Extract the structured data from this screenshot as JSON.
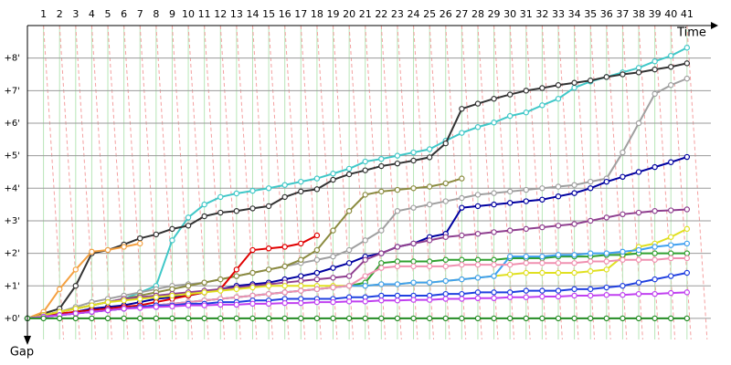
{
  "chart_data": {
    "type": "line",
    "x_label": "Time",
    "y_label": "Gap",
    "x": [
      0,
      1,
      2,
      3,
      4,
      5,
      6,
      7,
      8,
      9,
      10,
      11,
      12,
      13,
      14,
      15,
      16,
      17,
      18,
      19,
      20,
      21,
      22,
      23,
      24,
      25,
      26,
      27,
      28,
      29,
      30,
      31,
      32,
      33,
      34,
      35,
      36,
      37,
      38,
      39,
      40,
      41
    ],
    "xlim": [
      0,
      42.6
    ],
    "xticks": [
      1,
      2,
      3,
      4,
      5,
      6,
      7,
      8,
      9,
      10,
      11,
      12,
      13,
      14,
      15,
      16,
      17,
      18,
      19,
      20,
      21,
      22,
      23,
      24,
      25,
      26,
      27,
      28,
      29,
      30,
      31,
      32,
      33,
      34,
      35,
      36,
      37,
      38,
      39,
      40,
      41
    ],
    "ylim": [
      -0.9,
      9
    ],
    "yticks": [
      {
        "value": 0,
        "label": "+0'"
      },
      {
        "value": 1,
        "label": "+1'"
      },
      {
        "value": 2,
        "label": "+2'"
      },
      {
        "value": 3,
        "label": "+3'"
      },
      {
        "value": 4,
        "label": "+4'"
      },
      {
        "value": 5,
        "label": "+5'"
      },
      {
        "value": 6,
        "label": "+6'"
      },
      {
        "value": 7,
        "label": "+7'"
      },
      {
        "value": 8,
        "label": "+8'"
      }
    ],
    "grid": true,
    "series": [
      {
        "color": "#40c8c8",
        "values": [
          0,
          0.1,
          0.2,
          0.3,
          0.4,
          0.5,
          0.6,
          0.8,
          1.0,
          2.4,
          3.1,
          3.5,
          3.73,
          3.84,
          3.92,
          4.0,
          4.1,
          4.2,
          4.3,
          4.45,
          4.6,
          4.82,
          4.9,
          5.0,
          5.1,
          5.2,
          5.46,
          5.7,
          5.88,
          6.02,
          6.22,
          6.33,
          6.55,
          6.75,
          7.09,
          7.28,
          7.42,
          7.56,
          7.7,
          7.9,
          8.07,
          8.32
        ]
      },
      {
        "color": "#333333",
        "values": [
          0,
          0.15,
          0.3,
          1.0,
          2.0,
          2.1,
          2.27,
          2.46,
          2.58,
          2.75,
          2.85,
          3.14,
          3.25,
          3.3,
          3.38,
          3.45,
          3.73,
          3.9,
          3.97,
          4.26,
          4.43,
          4.55,
          4.68,
          4.76,
          4.85,
          4.95,
          5.38,
          6.44,
          6.6,
          6.75,
          6.88,
          7.0,
          7.08,
          7.17,
          7.24,
          7.31,
          7.42,
          7.5,
          7.56,
          7.65,
          7.73,
          7.84
        ]
      },
      {
        "color": "#f4a040",
        "values": [
          0,
          0.2,
          0.9,
          1.5,
          2.05,
          2.1,
          2.2,
          2.3,
          null,
          null,
          null,
          null,
          null,
          null,
          null,
          null,
          null,
          null,
          null,
          null,
          null,
          null,
          null,
          null,
          null,
          null,
          null,
          null,
          null,
          null,
          null,
          null,
          null,
          null,
          null,
          null,
          null,
          null,
          null,
          null,
          null,
          null
        ]
      },
      {
        "color": "#a0a0a0",
        "values": [
          0,
          0.1,
          0.2,
          0.35,
          0.5,
          0.6,
          0.7,
          0.8,
          0.9,
          1.0,
          1.05,
          1.1,
          1.2,
          1.3,
          1.4,
          1.5,
          1.6,
          1.7,
          1.8,
          1.9,
          2.1,
          2.4,
          2.7,
          3.3,
          3.4,
          3.5,
          3.6,
          3.7,
          3.8,
          3.85,
          3.9,
          3.95,
          4.0,
          4.05,
          4.1,
          4.2,
          4.3,
          5.1,
          6.0,
          6.9,
          7.17,
          7.37
        ]
      },
      {
        "color": "#0000a0",
        "values": [
          0,
          0.05,
          0.1,
          0.2,
          0.3,
          0.35,
          0.4,
          0.5,
          0.6,
          0.65,
          0.7,
          0.8,
          0.9,
          1.0,
          1.05,
          1.1,
          1.2,
          1.3,
          1.4,
          1.55,
          1.7,
          1.9,
          2.0,
          2.2,
          2.3,
          2.5,
          2.6,
          3.4,
          3.45,
          3.5,
          3.55,
          3.6,
          3.65,
          3.75,
          3.85,
          4.0,
          4.2,
          4.35,
          4.5,
          4.65,
          4.8,
          4.96
        ]
      },
      {
        "color": "#8b8b40",
        "values": [
          0,
          0.1,
          0.2,
          0.3,
          0.4,
          0.5,
          0.6,
          0.7,
          0.8,
          0.9,
          1.0,
          1.1,
          1.2,
          1.3,
          1.4,
          1.5,
          1.6,
          1.8,
          2.1,
          2.7,
          3.3,
          3.8,
          3.9,
          3.95,
          4.0,
          4.05,
          4.15,
          4.3,
          null,
          null,
          null,
          null,
          null,
          null,
          null,
          null,
          null,
          null,
          null,
          null,
          null,
          null
        ]
      },
      {
        "color": "#e00000",
        "values": [
          0,
          0.1,
          0.15,
          0.2,
          0.25,
          0.3,
          0.35,
          0.4,
          0.5,
          0.6,
          0.7,
          0.8,
          0.9,
          1.5,
          2.1,
          2.15,
          2.2,
          2.3,
          2.55,
          null,
          null,
          null,
          null,
          null,
          null,
          null,
          null,
          null,
          null,
          null,
          null,
          null,
          null,
          null,
          null,
          null,
          null,
          null,
          null,
          null,
          null,
          null
        ]
      },
      {
        "color": "#904090",
        "values": [
          0,
          0.1,
          0.2,
          0.3,
          0.4,
          0.5,
          0.6,
          0.65,
          0.7,
          0.75,
          0.8,
          0.85,
          0.9,
          0.95,
          1.0,
          1.05,
          1.1,
          1.15,
          1.2,
          1.25,
          1.3,
          1.8,
          2.0,
          2.2,
          2.3,
          2.4,
          2.5,
          2.55,
          2.6,
          2.65,
          2.7,
          2.75,
          2.8,
          2.85,
          2.9,
          3.0,
          3.1,
          3.2,
          3.25,
          3.3,
          3.32,
          3.35
        ]
      },
      {
        "color": "#e0e020",
        "values": [
          0,
          0.1,
          0.2,
          0.3,
          0.4,
          0.5,
          0.55,
          0.6,
          0.65,
          0.7,
          0.75,
          0.8,
          0.85,
          0.9,
          0.95,
          1.0,
          1.0,
          1.0,
          1.0,
          1.0,
          1.0,
          1.0,
          1.05,
          1.05,
          1.1,
          1.1,
          1.15,
          1.2,
          1.25,
          1.3,
          1.35,
          1.4,
          1.4,
          1.4,
          1.4,
          1.45,
          1.5,
          1.9,
          2.2,
          2.3,
          2.5,
          2.75
        ]
      },
      {
        "color": "#30a030",
        "values": [
          0,
          0.05,
          0.1,
          0.15,
          0.2,
          0.25,
          0.3,
          0.35,
          0.4,
          0.45,
          0.5,
          0.55,
          0.6,
          0.65,
          0.7,
          0.75,
          0.8,
          0.85,
          0.9,
          0.95,
          1.0,
          1.1,
          1.7,
          1.75,
          1.75,
          1.75,
          1.8,
          1.8,
          1.8,
          1.8,
          1.85,
          1.85,
          1.85,
          1.9,
          1.9,
          1.9,
          1.95,
          1.95,
          2.0,
          2.0,
          2.0,
          2.0
        ]
      },
      {
        "color": "#40a0f0",
        "values": [
          0,
          0.05,
          0.1,
          0.15,
          0.2,
          0.25,
          0.3,
          0.35,
          0.4,
          0.45,
          0.5,
          0.55,
          0.6,
          0.65,
          0.7,
          0.75,
          0.8,
          0.85,
          0.9,
          0.95,
          1.0,
          1.0,
          1.05,
          1.05,
          1.1,
          1.1,
          1.15,
          1.2,
          1.25,
          1.3,
          1.9,
          1.9,
          1.9,
          1.95,
          1.95,
          2.0,
          2.0,
          2.05,
          2.1,
          2.2,
          2.25,
          2.3
        ]
      },
      {
        "color": "#f090b0",
        "values": [
          0,
          0.05,
          0.1,
          0.15,
          0.2,
          0.25,
          0.3,
          0.35,
          0.4,
          0.45,
          0.5,
          0.55,
          0.6,
          0.65,
          0.7,
          0.75,
          0.8,
          0.85,
          0.9,
          0.95,
          1.0,
          1.3,
          1.55,
          1.6,
          1.6,
          1.6,
          1.6,
          1.65,
          1.65,
          1.65,
          1.65,
          1.7,
          1.7,
          1.7,
          1.7,
          1.75,
          1.75,
          1.8,
          1.8,
          1.8,
          1.85,
          1.85
        ]
      },
      {
        "color": "#2040e0",
        "values": [
          0,
          0.05,
          0.1,
          0.15,
          0.2,
          0.25,
          0.3,
          0.35,
          0.4,
          0.4,
          0.45,
          0.45,
          0.5,
          0.5,
          0.55,
          0.55,
          0.6,
          0.6,
          0.6,
          0.6,
          0.65,
          0.65,
          0.7,
          0.7,
          0.7,
          0.7,
          0.75,
          0.75,
          0.8,
          0.8,
          0.8,
          0.85,
          0.85,
          0.85,
          0.9,
          0.9,
          0.95,
          1.0,
          1.1,
          1.2,
          1.3,
          1.4
        ]
      },
      {
        "color": "#c040f0",
        "values": [
          0,
          0.05,
          0.1,
          0.15,
          0.2,
          0.25,
          0.3,
          0.32,
          0.35,
          0.37,
          0.4,
          0.4,
          0.42,
          0.42,
          0.45,
          0.45,
          0.47,
          0.47,
          0.5,
          0.5,
          0.52,
          0.52,
          0.55,
          0.55,
          0.57,
          0.57,
          0.6,
          0.6,
          0.62,
          0.62,
          0.65,
          0.65,
          0.67,
          0.67,
          0.7,
          0.7,
          0.72,
          0.72,
          0.75,
          0.75,
          0.78,
          0.8
        ]
      },
      {
        "color": "#228b22",
        "values": [
          0,
          0,
          0,
          0,
          0,
          0,
          0,
          0,
          0,
          0,
          0,
          0,
          0,
          0,
          0,
          0,
          0,
          0,
          0,
          0,
          0,
          0,
          0,
          0,
          0,
          0,
          0,
          0,
          0,
          0,
          0,
          0,
          0,
          0,
          0,
          0,
          0,
          0,
          0,
          0,
          0,
          0
        ]
      }
    ]
  }
}
